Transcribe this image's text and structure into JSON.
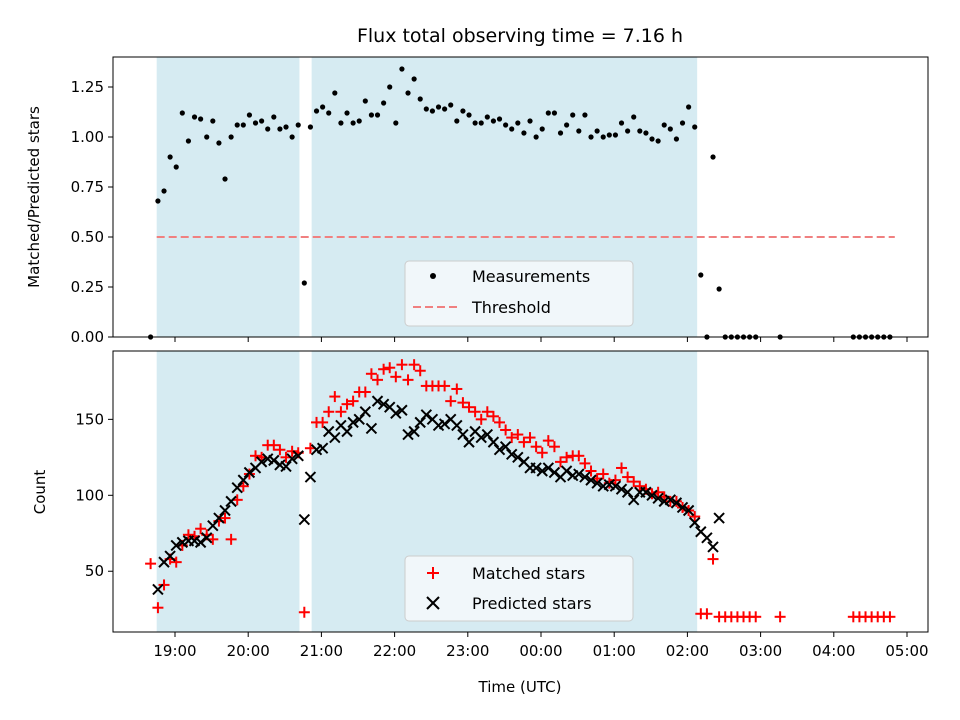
{
  "chart_data": [
    {
      "type": "scatter",
      "title": "Flux total observing time = 7.16 h",
      "xlabel": "",
      "ylabel": "Matched/Predicted stars",
      "ylim": [
        0.0,
        1.4
      ],
      "yticks": [
        "0.00",
        "0.25",
        "0.50",
        "0.75",
        "1.00",
        "1.25"
      ],
      "ytick_values": [
        0.0,
        0.25,
        0.5,
        0.75,
        1.0,
        1.25
      ],
      "legend": {
        "location": "lower-center",
        "entries": [
          "Measurements",
          "Threshold"
        ]
      },
      "shaded_intervals": [
        [
          "18:45",
          "20:42"
        ],
        [
          "20:52",
          "02:08"
        ]
      ],
      "series": [
        {
          "name": "Measurements",
          "marker": "dot",
          "color": "#000000",
          "x": [
            "18:40",
            "18:46",
            "18:51",
            "18:56",
            "19:01",
            "19:06",
            "19:11",
            "19:16",
            "19:21",
            "19:26",
            "19:31",
            "19:36",
            "19:41",
            "19:46",
            "19:51",
            "19:56",
            "20:01",
            "20:06",
            "20:11",
            "20:16",
            "20:21",
            "20:26",
            "20:31",
            "20:36",
            "20:41",
            "20:46",
            "20:51",
            "20:56",
            "21:01",
            "21:06",
            "21:11",
            "21:16",
            "21:21",
            "21:26",
            "21:31",
            "21:36",
            "21:41",
            "21:46",
            "21:51",
            "21:56",
            "22:01",
            "22:06",
            "22:11",
            "22:16",
            "22:21",
            "22:26",
            "22:31",
            "22:36",
            "22:41",
            "22:46",
            "22:51",
            "22:56",
            "23:01",
            "23:06",
            "23:11",
            "23:16",
            "23:21",
            "23:26",
            "23:31",
            "23:36",
            "23:41",
            "23:46",
            "23:51",
            "23:56",
            "00:01",
            "00:06",
            "00:11",
            "00:16",
            "00:21",
            "00:26",
            "00:31",
            "00:36",
            "00:41",
            "00:46",
            "00:51",
            "00:56",
            "01:01",
            "01:06",
            "01:11",
            "01:16",
            "01:21",
            "01:26",
            "01:31",
            "01:36",
            "01:41",
            "01:46",
            "01:51",
            "01:56",
            "02:01",
            "02:06",
            "02:11",
            "02:16",
            "02:21",
            "02:26",
            "02:31",
            "02:36",
            "02:41",
            "02:46",
            "02:51",
            "02:56",
            "03:16",
            "04:16",
            "04:21",
            "04:26",
            "04:31",
            "04:36",
            "04:41",
            "04:46"
          ],
          "y": [
            0.0,
            0.68,
            0.73,
            0.9,
            0.85,
            1.12,
            0.98,
            1.1,
            1.09,
            1.0,
            1.08,
            0.97,
            0.79,
            1.0,
            1.06,
            1.06,
            1.11,
            1.07,
            1.08,
            1.04,
            1.1,
            1.04,
            1.05,
            1.0,
            1.06,
            0.27,
            1.05,
            1.13,
            1.15,
            1.12,
            1.22,
            1.07,
            1.12,
            1.07,
            1.08,
            1.18,
            1.11,
            1.11,
            1.17,
            1.25,
            1.07,
            1.34,
            1.22,
            1.29,
            1.19,
            1.14,
            1.13,
            1.15,
            1.14,
            1.16,
            1.08,
            1.13,
            1.11,
            1.07,
            1.07,
            1.1,
            1.08,
            1.09,
            1.06,
            1.04,
            1.07,
            1.02,
            1.08,
            1.0,
            1.04,
            1.12,
            1.12,
            1.02,
            1.06,
            1.11,
            1.03,
            1.11,
            1.0,
            1.03,
            1.0,
            1.01,
            1.01,
            1.07,
            1.03,
            1.1,
            1.03,
            1.02,
            0.99,
            0.98,
            1.06,
            1.04,
            0.99,
            1.07,
            1.15,
            1.05,
            0.31,
            0.0,
            0.9,
            0.24,
            0.0,
            0.0,
            0.0,
            0.0,
            0.0,
            0.0,
            0.0,
            0.0,
            0.0,
            0.0,
            0.0,
            0.0,
            0.0,
            0.0
          ]
        },
        {
          "name": "Threshold",
          "style": "dashed",
          "color": "#f08080",
          "x": [
            "18:45",
            "04:50"
          ],
          "y": [
            0.5,
            0.5
          ]
        }
      ]
    },
    {
      "type": "scatter",
      "title": "",
      "xlabel": "Time (UTC)",
      "ylabel": "Count",
      "ylim": [
        10,
        195
      ],
      "yticks": [
        "50",
        "100",
        "150"
      ],
      "ytick_values": [
        50,
        100,
        150
      ],
      "xticks": [
        "19:00",
        "20:00",
        "21:00",
        "22:00",
        "23:00",
        "00:00",
        "01:00",
        "02:00",
        "03:00",
        "04:00",
        "05:00"
      ],
      "xtick_positions": [
        "19:00",
        "20:00",
        "21:00",
        "22:00",
        "23:00",
        "00:00",
        "01:00",
        "02:00",
        "03:00",
        "04:00",
        "05:00"
      ],
      "legend": {
        "location": "lower-center",
        "entries": [
          "Matched stars",
          "Predicted stars"
        ]
      },
      "shaded_intervals": [
        [
          "18:45",
          "20:42"
        ],
        [
          "20:52",
          "02:08"
        ]
      ],
      "series": [
        {
          "name": "Matched stars",
          "marker": "plus",
          "color": "#ff0000",
          "x": [
            "18:40",
            "18:46",
            "18:51",
            "18:56",
            "19:01",
            "19:06",
            "19:11",
            "19:16",
            "19:21",
            "19:26",
            "19:31",
            "19:36",
            "19:41",
            "19:46",
            "19:51",
            "19:56",
            "20:01",
            "20:06",
            "20:11",
            "20:16",
            "20:21",
            "20:26",
            "20:31",
            "20:36",
            "20:41",
            "20:46",
            "20:51",
            "20:56",
            "21:01",
            "21:06",
            "21:11",
            "21:16",
            "21:21",
            "21:26",
            "21:31",
            "21:36",
            "21:41",
            "21:46",
            "21:51",
            "21:56",
            "22:01",
            "22:06",
            "22:11",
            "22:16",
            "22:21",
            "22:26",
            "22:31",
            "22:36",
            "22:41",
            "22:46",
            "22:51",
            "22:56",
            "23:01",
            "23:06",
            "23:11",
            "23:16",
            "23:21",
            "23:26",
            "23:31",
            "23:36",
            "23:41",
            "23:46",
            "23:51",
            "23:56",
            "00:01",
            "00:06",
            "00:11",
            "00:16",
            "00:21",
            "00:26",
            "00:31",
            "00:36",
            "00:41",
            "00:46",
            "00:51",
            "00:56",
            "01:01",
            "01:06",
            "01:11",
            "01:16",
            "01:21",
            "01:26",
            "01:31",
            "01:36",
            "01:41",
            "01:46",
            "01:51",
            "01:56",
            "02:01",
            "02:06",
            "02:11",
            "02:16",
            "02:21",
            "02:26",
            "02:31",
            "02:36",
            "02:41",
            "02:46",
            "02:51",
            "02:56",
            "03:16",
            "04:16",
            "04:21",
            "04:26",
            "04:31",
            "04:36",
            "04:41",
            "04:46"
          ],
          "y": [
            55,
            26,
            41,
            58,
            56,
            67,
            74,
            73,
            78,
            74,
            71,
            83,
            85,
            71,
            97,
            106,
            114,
            126,
            125,
            133,
            133,
            130,
            125,
            129,
            128,
            23,
            131,
            148,
            148,
            155,
            165,
            155,
            160,
            162,
            168,
            168,
            180,
            176,
            183,
            184,
            178,
            186,
            176,
            186,
            182,
            172,
            172,
            172,
            172,
            162,
            170,
            161,
            158,
            155,
            150,
            155,
            152,
            148,
            143,
            138,
            140,
            135,
            138,
            132,
            128,
            136,
            132,
            122,
            125,
            126,
            126,
            121,
            116,
            111,
            114,
            108,
            110,
            118,
            112,
            109,
            106,
            104,
            101,
            102,
            99,
            96,
            96,
            92,
            90,
            86,
            22,
            22,
            58,
            20,
            20,
            20,
            20,
            20,
            20,
            20,
            20,
            20,
            20,
            20,
            20,
            20,
            20,
            20
          ]
        },
        {
          "name": "Predicted stars",
          "marker": "x",
          "color": "#000000",
          "x": [
            "18:46",
            "18:51",
            "18:56",
            "19:01",
            "19:06",
            "19:11",
            "19:16",
            "19:21",
            "19:26",
            "19:31",
            "19:36",
            "19:41",
            "19:46",
            "19:51",
            "19:56",
            "20:01",
            "20:06",
            "20:11",
            "20:16",
            "20:21",
            "20:26",
            "20:31",
            "20:36",
            "20:41",
            "20:46",
            "20:51",
            "20:56",
            "21:01",
            "21:06",
            "21:11",
            "21:16",
            "21:21",
            "21:26",
            "21:31",
            "21:36",
            "21:41",
            "21:46",
            "21:51",
            "21:56",
            "22:01",
            "22:06",
            "22:11",
            "22:16",
            "22:21",
            "22:26",
            "22:31",
            "22:36",
            "22:41",
            "22:46",
            "22:51",
            "22:56",
            "23:01",
            "23:06",
            "23:11",
            "23:16",
            "23:21",
            "23:26",
            "23:31",
            "23:36",
            "23:41",
            "23:46",
            "23:51",
            "23:56",
            "00:01",
            "00:06",
            "00:11",
            "00:16",
            "00:21",
            "00:26",
            "00:31",
            "00:36",
            "00:41",
            "00:46",
            "00:51",
            "00:56",
            "01:01",
            "01:06",
            "01:11",
            "01:16",
            "01:21",
            "01:26",
            "01:31",
            "01:36",
            "01:41",
            "01:46",
            "01:51",
            "01:56",
            "02:01",
            "02:06",
            "02:11",
            "02:16",
            "02:21",
            "02:26"
          ],
          "y": [
            38,
            56,
            60,
            67,
            69,
            70,
            70,
            69,
            72,
            80,
            85,
            90,
            96,
            105,
            110,
            115,
            118,
            122,
            124,
            123,
            120,
            119,
            124,
            126,
            84,
            112,
            130,
            131,
            142,
            138,
            146,
            142,
            148,
            150,
            155,
            144,
            162,
            160,
            158,
            154,
            156,
            140,
            142,
            148,
            153,
            150,
            146,
            147,
            150,
            146,
            140,
            135,
            142,
            138,
            140,
            135,
            130,
            132,
            127,
            125,
            122,
            118,
            118,
            116,
            118,
            115,
            112,
            116,
            113,
            114,
            112,
            110,
            108,
            106,
            107,
            106,
            104,
            102,
            97,
            102,
            102,
            100,
            98,
            96,
            97,
            95,
            92,
            90,
            82,
            76,
            72,
            66,
            85
          ]
        }
      ]
    }
  ]
}
